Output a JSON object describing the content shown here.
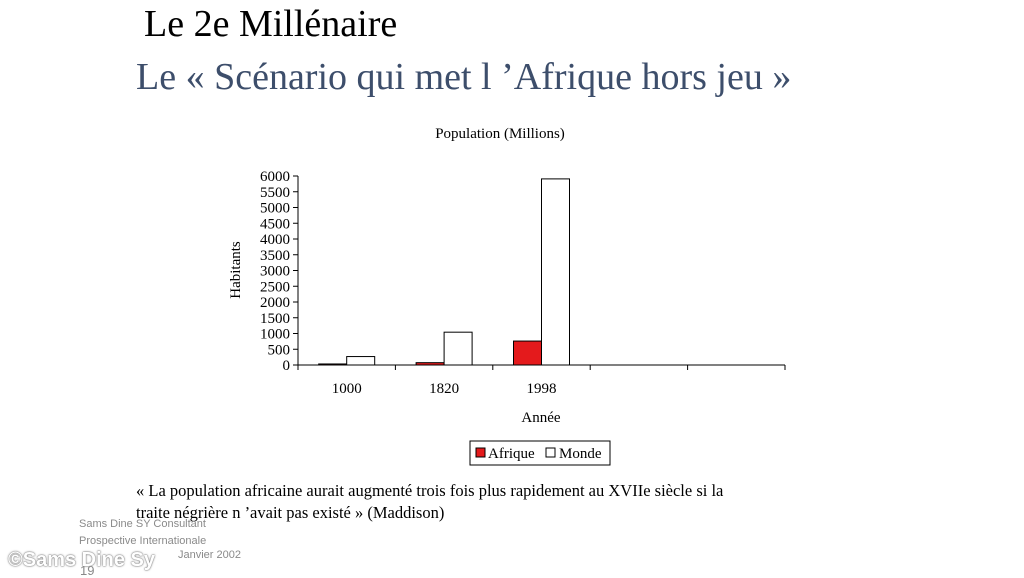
{
  "slide": {
    "title": "Le 2e Millénaire",
    "subtitle": "Le « Scénario qui met l ’Afrique hors jeu »",
    "quote_line1": "« La population africaine aurait augmenté trois fois plus rapidement au XVIIe siècle si la",
    "quote_line2": "traite négrière n ’avait pas existé » (Maddison)",
    "footer": {
      "author": "Sams Dine SY Consultant",
      "org": "Prospective Internationale",
      "date": "Janvier 2002",
      "watermark": "©Sams Dine Sy",
      "page_number": "19"
    }
  },
  "chart_data": {
    "type": "bar",
    "title": "Population (Millions)",
    "xlabel": "Année",
    "ylabel": "Habitants",
    "categories": [
      "1000",
      "1820",
      "1998",
      "",
      ""
    ],
    "series": [
      {
        "name": "Afrique",
        "color": "#e41a1c",
        "values": [
          33,
          74,
          760,
          null,
          null
        ]
      },
      {
        "name": "Monde",
        "color": "#ffffff",
        "values": [
          268,
          1042,
          5908,
          null,
          null
        ]
      }
    ],
    "ylim": [
      0,
      6000
    ],
    "yticks": [
      0,
      500,
      1000,
      1500,
      2000,
      2500,
      3000,
      3500,
      4000,
      4500,
      5000,
      5500,
      6000
    ],
    "grid": false,
    "legend_position": "bottom"
  }
}
